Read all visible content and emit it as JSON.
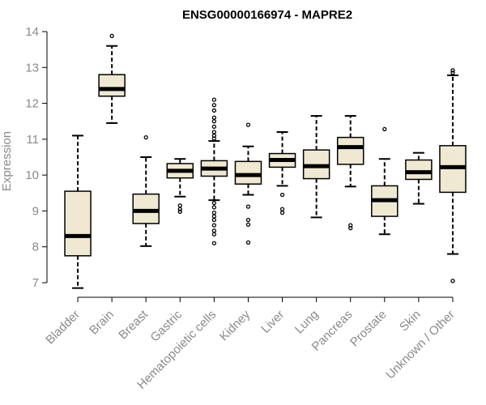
{
  "chart_data": {
    "type": "boxplot",
    "title": "ENSG00000166974 - MAPRE2",
    "xlabel": "",
    "ylabel": "Expression",
    "ylim": [
      6.9,
      14.1
    ],
    "yticks": [
      7,
      8,
      9,
      10,
      11,
      12,
      13,
      14
    ],
    "grid": false,
    "categories": [
      "Bladder",
      "Brain",
      "Breast",
      "Gastric",
      "Hematopoietic cells",
      "Kidney",
      "Liver",
      "Lung",
      "Pancreas",
      "Prostate",
      "Skin",
      "Unknown / Other"
    ],
    "series": [
      {
        "name": "Bladder",
        "min": 6.85,
        "q1": 7.75,
        "median": 8.3,
        "q3": 9.55,
        "max": 11.1,
        "outliers": []
      },
      {
        "name": "Brain",
        "min": 11.45,
        "q1": 12.2,
        "median": 12.4,
        "q3": 12.8,
        "max": 13.6,
        "outliers": [
          13.88
        ]
      },
      {
        "name": "Breast",
        "min": 8.02,
        "q1": 8.65,
        "median": 9.0,
        "q3": 9.47,
        "max": 10.5,
        "outliers": [
          11.05
        ]
      },
      {
        "name": "Gastric",
        "min": 9.4,
        "q1": 9.92,
        "median": 10.12,
        "q3": 10.32,
        "max": 10.45,
        "outliers": [
          9.15,
          9.05,
          8.98
        ]
      },
      {
        "name": "Hematopoietic cells",
        "min": 9.3,
        "q1": 9.97,
        "median": 10.18,
        "q3": 10.4,
        "max": 10.95,
        "outliers": [
          12.1,
          11.95,
          11.8,
          11.6,
          11.5,
          11.35,
          11.2,
          11.1,
          11.02,
          9.22,
          9.1,
          8.95,
          8.85,
          8.75,
          8.6,
          8.45,
          8.35,
          8.1
        ]
      },
      {
        "name": "Kidney",
        "min": 9.45,
        "q1": 9.75,
        "median": 10.0,
        "q3": 10.38,
        "max": 10.8,
        "outliers": [
          11.4,
          9.12,
          8.75,
          8.62,
          8.12
        ]
      },
      {
        "name": "Liver",
        "min": 9.7,
        "q1": 10.22,
        "median": 10.42,
        "q3": 10.6,
        "max": 11.2,
        "outliers": [
          9.45,
          9.05,
          8.95
        ]
      },
      {
        "name": "Lung",
        "min": 8.82,
        "q1": 9.9,
        "median": 10.25,
        "q3": 10.7,
        "max": 11.65,
        "outliers": []
      },
      {
        "name": "Pancreas",
        "min": 9.68,
        "q1": 10.3,
        "median": 10.78,
        "q3": 11.05,
        "max": 11.65,
        "outliers": [
          8.6,
          8.52
        ]
      },
      {
        "name": "Prostate",
        "min": 8.35,
        "q1": 8.85,
        "median": 9.3,
        "q3": 9.7,
        "max": 10.45,
        "outliers": [
          11.28
        ]
      },
      {
        "name": "Skin",
        "min": 9.2,
        "q1": 9.88,
        "median": 10.08,
        "q3": 10.42,
        "max": 10.62,
        "outliers": []
      },
      {
        "name": "Unknown / Other",
        "min": 7.8,
        "q1": 9.52,
        "median": 10.22,
        "q3": 10.82,
        "max": 12.78,
        "outliers": [
          12.92,
          12.85,
          7.05
        ]
      }
    ]
  },
  "colors": {
    "box_fill": "#efe9d2",
    "stroke": "#000000",
    "label_gray": "#8a8a8a"
  }
}
